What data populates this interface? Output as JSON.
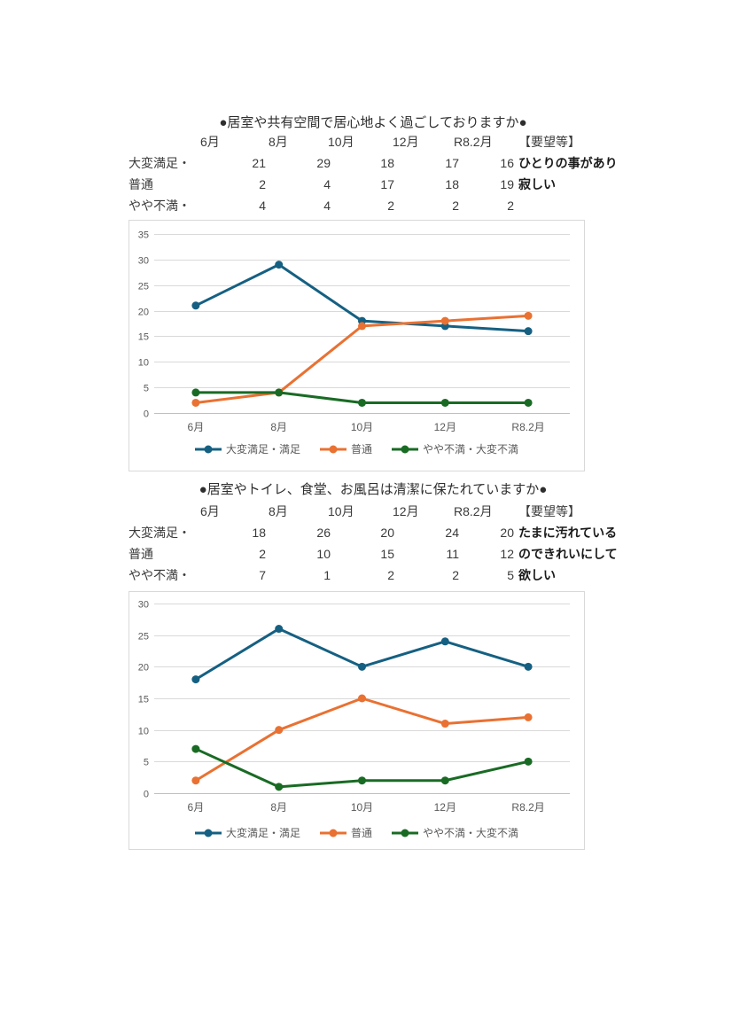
{
  "document": {
    "sections": [
      {
        "title": "●居室や共有空間で居心地よく過ごしておりますか●",
        "table": {
          "col_headers": [
            "6月",
            "8月",
            "10月",
            "12月",
            "R8.2月",
            "【要望等】"
          ],
          "rows": [
            {
              "label": "大変満足・",
              "values": [
                "21",
                "29",
                "18",
                "17",
                "16"
              ],
              "remark": "ひとりの事があり"
            },
            {
              "label": "普通",
              "values": [
                "2",
                "4",
                "17",
                "18",
                "19"
              ],
              "remark": "寂しい"
            },
            {
              "label": "やや不満・",
              "values": [
                "4",
                "4",
                "2",
                "2",
                "2"
              ],
              "remark": ""
            }
          ]
        }
      },
      {
        "title": "●居室やトイレ、食堂、お風呂は清潔に保たれていますか●",
        "table": {
          "col_headers": [
            "6月",
            "8月",
            "10月",
            "12月",
            "R8.2月",
            "【要望等】"
          ],
          "rows": [
            {
              "label": "大変満足・",
              "values": [
                "18",
                "26",
                "20",
                "24",
                "20"
              ],
              "remark": "たまに汚れている"
            },
            {
              "label": "普通",
              "values": [
                "2",
                "10",
                "15",
                "11",
                "12"
              ],
              "remark": "のできれいにして"
            },
            {
              "label": "やや不満・",
              "values": [
                "7",
                "1",
                "2",
                "2",
                "5"
              ],
              "remark": "欲しい"
            }
          ]
        }
      }
    ]
  },
  "chart_data": [
    {
      "type": "line",
      "title": "",
      "categories": [
        "6月",
        "8月",
        "10月",
        "12月",
        "R8.2月"
      ],
      "series": [
        {
          "name": "大変満足・満足",
          "values": [
            21,
            29,
            18,
            17,
            16
          ],
          "color": "#156082"
        },
        {
          "name": "普通",
          "values": [
            2,
            4,
            17,
            18,
            19
          ],
          "color": "#E97132"
        },
        {
          "name": "やや不満・大変不満",
          "values": [
            4,
            4,
            2,
            2,
            2
          ],
          "color": "#196B24"
        }
      ],
      "xlabel": "",
      "ylabel": "",
      "ylim": [
        0,
        35
      ],
      "ytick_step": 5,
      "grid": true,
      "legend_position": "bottom"
    },
    {
      "type": "line",
      "title": "",
      "categories": [
        "6月",
        "8月",
        "10月",
        "12月",
        "R8.2月"
      ],
      "series": [
        {
          "name": "大変満足・満足",
          "values": [
            18,
            26,
            20,
            24,
            20
          ],
          "color": "#156082"
        },
        {
          "name": "普通",
          "values": [
            2,
            10,
            15,
            11,
            12
          ],
          "color": "#E97132"
        },
        {
          "name": "やや不満・大変不満",
          "values": [
            7,
            1,
            2,
            2,
            5
          ],
          "color": "#196B24"
        }
      ],
      "xlabel": "",
      "ylabel": "",
      "ylim": [
        0,
        30
      ],
      "ytick_step": 5,
      "grid": true,
      "legend_position": "bottom"
    }
  ],
  "style": {
    "grid_color": "#D9D9D9",
    "axis_color": "#BFBFBF",
    "tick_label_color": "#595959",
    "chart_border_color": "#D9D9D9",
    "table_text_color": "#3a3a3a",
    "remark_text_color": "#1a1a1a"
  }
}
